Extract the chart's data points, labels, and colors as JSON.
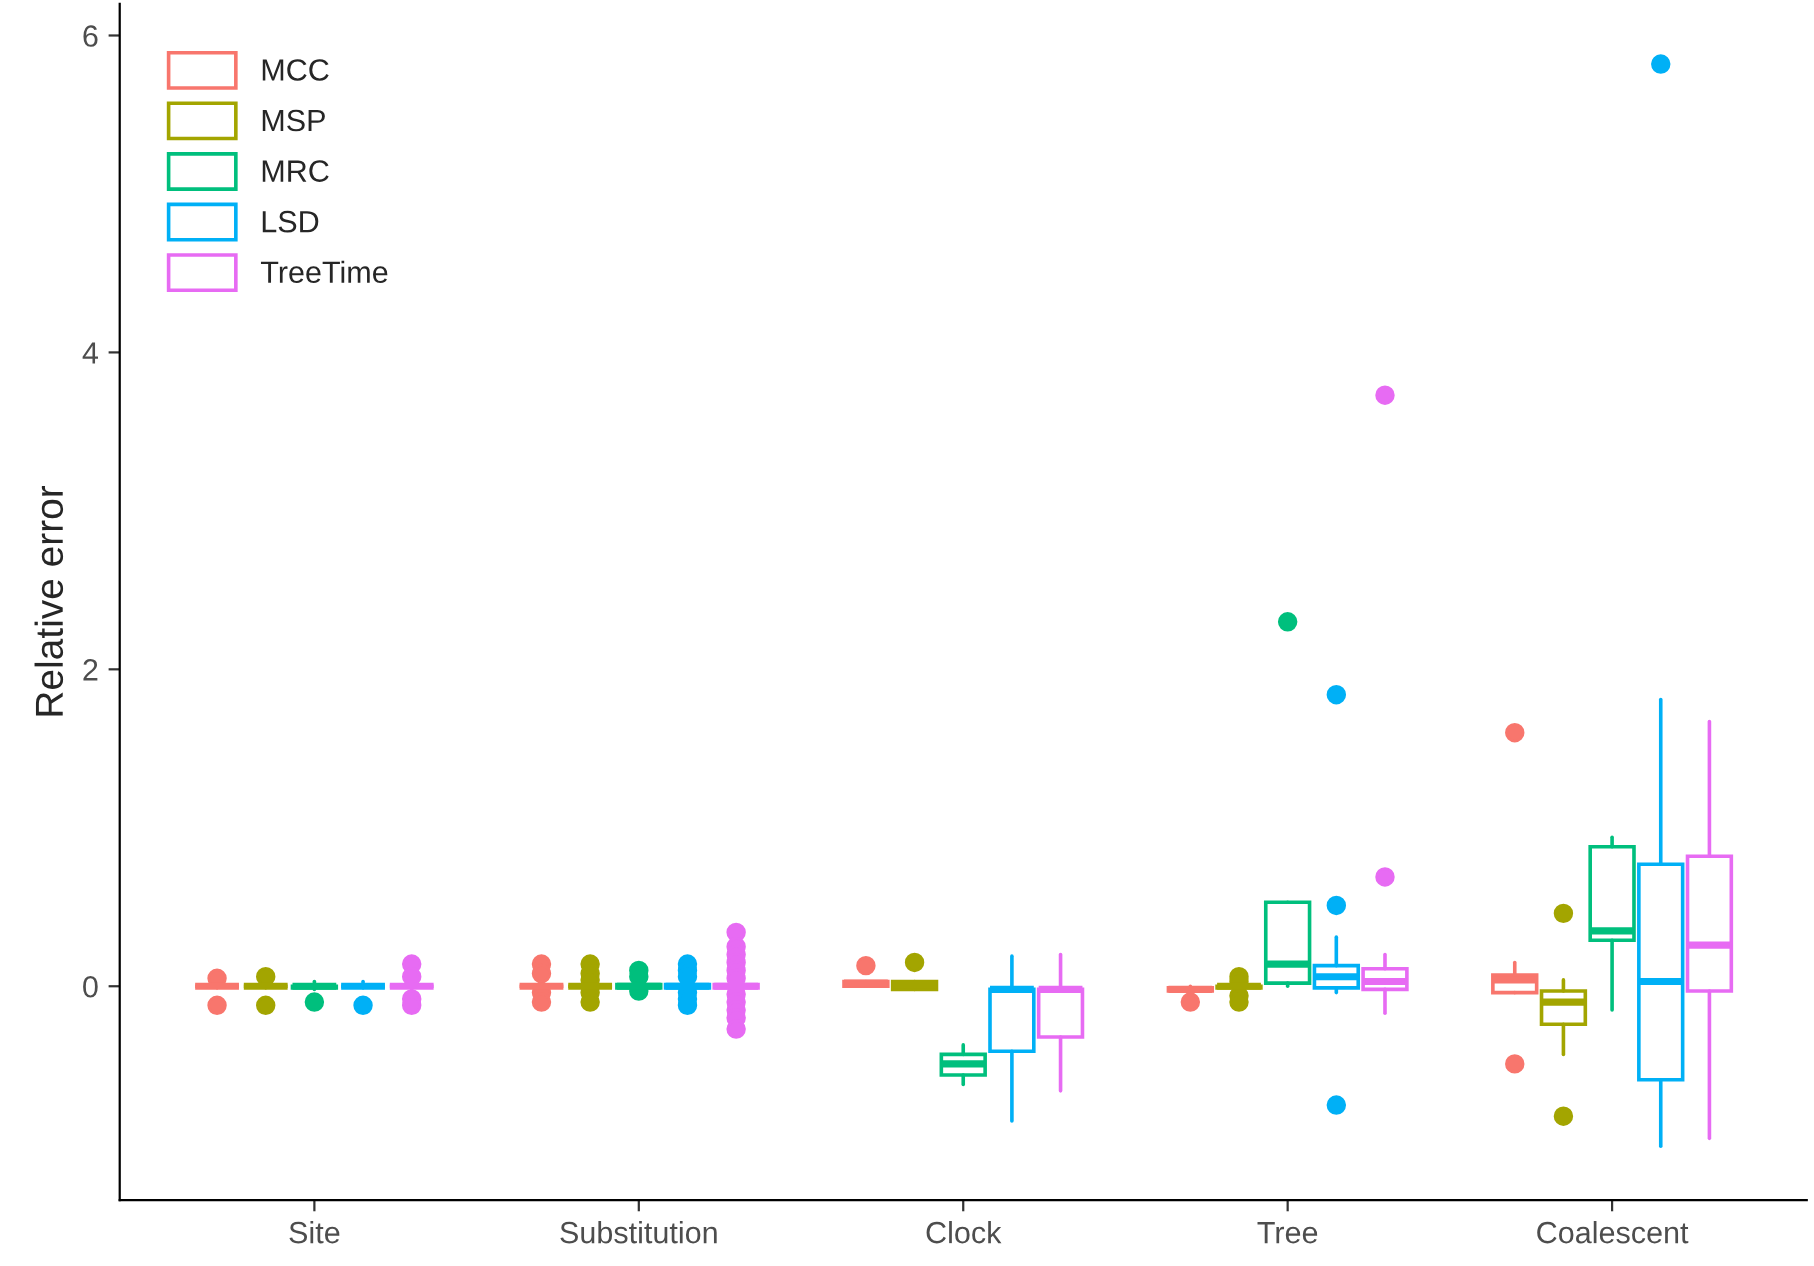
{
  "chart_data": {
    "type": "box",
    "ylabel": "Relative error",
    "categories": [
      "Site",
      "Substitution",
      "Clock",
      "Tree",
      "Coalescent"
    ],
    "ylim": [
      -1.35,
      6.2
    ],
    "yticks": [
      0,
      2,
      4,
      6
    ],
    "grid": false,
    "legend": "top left",
    "series": [
      {
        "name": "MCC",
        "color": "#f8766d",
        "boxes": [
          {
            "low": -0.01,
            "q1": 0,
            "median": 0,
            "q3": 0,
            "high": 0.01,
            "outliers": [
              0.05,
              -0.12
            ]
          },
          {
            "low": -0.02,
            "q1": 0,
            "median": 0,
            "q3": 0,
            "high": 0.02,
            "outliers": [
              0.14,
              0.08,
              -0.04,
              -0.1
            ]
          },
          {
            "low": 0,
            "q1": 0,
            "median": 0.02,
            "q3": 0.03,
            "high": 0.03,
            "outliers": [
              0.13
            ]
          },
          {
            "low": -0.04,
            "q1": -0.03,
            "median": -0.02,
            "q3": -0.01,
            "high": 0,
            "outliers": [
              -0.1
            ]
          },
          {
            "low": -0.04,
            "q1": -0.04,
            "median": 0.04,
            "q3": 0.07,
            "high": 0.15,
            "outliers": [
              1.6,
              -0.49
            ]
          }
        ]
      },
      {
        "name": "MSP",
        "color": "#a3a500",
        "boxes": [
          {
            "low": -0.01,
            "q1": 0,
            "median": 0,
            "q3": 0,
            "high": 0.01,
            "outliers": [
              0.06,
              -0.12
            ]
          },
          {
            "low": -0.02,
            "q1": 0,
            "median": 0,
            "q3": 0,
            "high": 0.02,
            "outliers": [
              0.14,
              0.08,
              0.04,
              -0.04,
              -0.1
            ]
          },
          {
            "low": -0.02,
            "q1": -0.02,
            "median": 0.01,
            "q3": 0.03,
            "high": 0.03,
            "outliers": [
              0.15
            ]
          },
          {
            "low": -0.02,
            "q1": -0.01,
            "median": 0,
            "q3": 0,
            "high": 0.01,
            "outliers": [
              0.06,
              0.03,
              -0.06,
              -0.1
            ]
          },
          {
            "low": -0.43,
            "q1": -0.24,
            "median": -0.1,
            "q3": -0.03,
            "high": 0.04,
            "outliers": [
              0.46,
              -0.82
            ]
          }
        ]
      },
      {
        "name": "MRC",
        "color": "#00bf7d",
        "boxes": [
          {
            "low": -0.02,
            "q1": -0.01,
            "median": 0,
            "q3": 0,
            "high": 0.03,
            "outliers": [
              -0.1
            ]
          },
          {
            "low": -0.02,
            "q1": -0.01,
            "median": 0,
            "q3": 0.01,
            "high": 0.02,
            "outliers": [
              0.1,
              0.06,
              -0.03
            ]
          },
          {
            "low": -0.62,
            "q1": -0.56,
            "median": -0.49,
            "q3": -0.43,
            "high": -0.37
          },
          {
            "low": 0.0,
            "q1": 0.02,
            "median": 0.14,
            "q3": 0.53,
            "high": 0.53,
            "outliers": [
              2.3
            ]
          },
          {
            "low": -0.15,
            "q1": 0.29,
            "median": 0.35,
            "q3": 0.88,
            "high": 0.94
          }
        ]
      },
      {
        "name": "LSD",
        "color": "#00b0f6",
        "boxes": [
          {
            "low": -0.01,
            "q1": 0,
            "median": 0,
            "q3": 0,
            "high": 0.03,
            "outliers": [
              -0.12
            ]
          },
          {
            "low": -0.02,
            "q1": -0.01,
            "median": 0,
            "q3": 0.01,
            "high": 0.02,
            "outliers": [
              0.14,
              0.1,
              0.06,
              -0.04,
              -0.08,
              -0.12
            ]
          },
          {
            "low": -0.85,
            "q1": -0.41,
            "median": -0.02,
            "q3": -0.02,
            "high": 0.19
          },
          {
            "low": -0.04,
            "q1": -0.01,
            "median": 0.06,
            "q3": 0.13,
            "high": 0.31,
            "outliers": [
              1.84,
              0.51,
              -0.75
            ]
          },
          {
            "low": -1.01,
            "q1": -0.59,
            "median": 0.03,
            "q3": 0.77,
            "high": 1.81,
            "outliers": [
              5.82
            ]
          }
        ]
      },
      {
        "name": "TreeTime",
        "color": "#e76bf3",
        "boxes": [
          {
            "low": -0.02,
            "q1": 0,
            "median": 0,
            "q3": 0,
            "high": 0.02,
            "outliers": [
              0.14,
              0.06,
              -0.08,
              -0.12
            ]
          },
          {
            "low": -0.02,
            "q1": -0.01,
            "median": 0,
            "q3": 0.01,
            "high": 0.02,
            "outliers": [
              0.34,
              0.25,
              0.2,
              0.15,
              0.1,
              0.05,
              -0.05,
              -0.1,
              -0.15,
              -0.2,
              -0.27
            ]
          },
          {
            "low": -0.66,
            "q1": -0.32,
            "median": -0.02,
            "q3": -0.02,
            "high": 0.2
          },
          {
            "low": -0.17,
            "q1": -0.02,
            "median": 0.03,
            "q3": 0.11,
            "high": 0.2,
            "outliers": [
              0.69,
              3.73
            ]
          },
          {
            "low": -0.96,
            "q1": -0.03,
            "median": 0.26,
            "q3": 0.82,
            "high": 1.67
          }
        ]
      }
    ]
  }
}
